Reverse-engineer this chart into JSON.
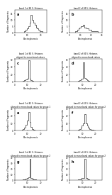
{
  "bg_color": "#ffffff",
  "line_color": "#333333",
  "xlabel": "Electrophoresis",
  "ylabel": "Number of Fragments",
  "panels": [
    {
      "label": "a",
      "title": "band 1 of 84 S. Histones",
      "xlim": [
        0,
        25
      ],
      "ylim": [
        0,
        18
      ],
      "yticks": [
        0,
        5,
        10,
        15
      ],
      "xticks": [
        0,
        10,
        20
      ],
      "data_x": [
        2,
        3,
        4,
        5,
        6,
        7,
        8,
        9,
        10,
        11,
        12,
        13,
        14,
        15,
        16,
        17,
        18,
        19,
        20,
        21,
        22,
        23
      ],
      "data_y": [
        0,
        0,
        0,
        0,
        0,
        0,
        1,
        2,
        3,
        5,
        8,
        14,
        10,
        8,
        6,
        4,
        3,
        2,
        1,
        1,
        0,
        0
      ]
    },
    {
      "label": "b",
      "title": "band 2 of 84 S. Histones",
      "xlim": [
        0,
        30
      ],
      "ylim": [
        0,
        18
      ],
      "yticks": [
        0,
        5,
        10,
        15
      ],
      "xticks": [
        0,
        10,
        20,
        30
      ],
      "data_x": [
        2,
        3,
        4,
        5,
        6,
        7,
        8,
        9,
        10,
        11,
        12,
        13,
        14,
        15,
        16,
        17,
        18,
        19,
        20,
        21,
        22,
        23,
        24,
        25,
        26,
        27,
        28
      ],
      "data_y": [
        0,
        0,
        0,
        0,
        1,
        1,
        2,
        3,
        4,
        5,
        5,
        6,
        4,
        4,
        3,
        3,
        2,
        2,
        2,
        1,
        1,
        1,
        1,
        1,
        1,
        0,
        0
      ]
    },
    {
      "label": "c",
      "title": "band 1 of 84 S. Histones\naligned to mean band values",
      "xlim": [
        0,
        25
      ],
      "ylim": [
        0,
        60
      ],
      "yticks": [
        0,
        20,
        40,
        60
      ],
      "xticks": [
        0,
        10,
        20
      ],
      "data_x": [
        2,
        3,
        4,
        5,
        6,
        7,
        8,
        9,
        10,
        11,
        12,
        13,
        14,
        15,
        16,
        17,
        18,
        19,
        20,
        21,
        22,
        23
      ],
      "data_y": [
        0,
        0,
        0,
        0,
        1,
        2,
        3,
        5,
        8,
        58,
        7,
        4,
        2,
        1,
        1,
        0,
        0,
        0,
        0,
        0,
        0,
        0
      ]
    },
    {
      "label": "d",
      "title": "band 2 of 84 S. Histones\naligned to mean band values",
      "xlim": [
        0,
        25
      ],
      "ylim": [
        0,
        60
      ],
      "yticks": [
        0,
        20,
        40,
        60
      ],
      "xticks": [
        0,
        10,
        20
      ],
      "data_x": [
        2,
        3,
        4,
        5,
        6,
        7,
        8,
        9,
        10,
        11,
        12,
        13,
        14,
        15,
        16,
        17,
        18,
        19,
        20,
        21,
        22,
        23
      ],
      "data_y": [
        0,
        0,
        0,
        0,
        1,
        2,
        3,
        5,
        8,
        52,
        10,
        6,
        3,
        2,
        1,
        0,
        0,
        0,
        0,
        0,
        0,
        0
      ]
    },
    {
      "label": "e",
      "title": "band 1 of 42 S. Histones\naligned to mean band values for group 1",
      "xlim": [
        0,
        25
      ],
      "ylim": [
        0,
        30
      ],
      "yticks": [
        0,
        10,
        20,
        30
      ],
      "xticks": [
        0,
        10,
        20
      ],
      "data_x": [
        4,
        5,
        6,
        7,
        8,
        9,
        10,
        11,
        12,
        13,
        14,
        15,
        16,
        17,
        18,
        19,
        20,
        21
      ],
      "data_y": [
        0,
        0,
        1,
        2,
        4,
        8,
        14,
        25,
        12,
        5,
        2,
        1,
        0,
        0,
        0,
        0,
        0,
        0
      ]
    },
    {
      "label": "f",
      "title": "band 2 of 42 S. Histones\naligned to mean band values for group 2",
      "xlim": [
        0,
        25
      ],
      "ylim": [
        0,
        30
      ],
      "yticks": [
        0,
        10,
        20,
        30
      ],
      "xticks": [
        0,
        10,
        20
      ],
      "data_x": [
        4,
        5,
        6,
        7,
        8,
        9,
        10,
        11,
        12,
        13,
        14,
        15,
        16,
        17,
        18,
        19,
        20,
        21,
        22,
        23
      ],
      "data_y": [
        0,
        0,
        0,
        1,
        2,
        4,
        7,
        10,
        22,
        10,
        7,
        4,
        2,
        1,
        1,
        0,
        0,
        0,
        0,
        0
      ]
    },
    {
      "label": "g",
      "title": "band 1 of 42 S. Histones\naligned to mean band values for group 2",
      "xlim": [
        0,
        25
      ],
      "ylim": [
        0,
        40
      ],
      "yticks": [
        0,
        10,
        20,
        30,
        40
      ],
      "xticks": [
        0,
        10,
        20
      ],
      "data_x": [
        4,
        5,
        6,
        7,
        8,
        9,
        10,
        11,
        12,
        13,
        14,
        15,
        16,
        17,
        18,
        19,
        20,
        21
      ],
      "data_y": [
        0,
        0,
        0,
        1,
        1,
        2,
        3,
        5,
        38,
        4,
        2,
        1,
        1,
        0,
        0,
        0,
        0,
        0
      ]
    },
    {
      "label": "h",
      "title": "band 2 of 42 S. Histones\naligned to mean band values for group 2",
      "xlim": [
        0,
        25
      ],
      "ylim": [
        0,
        40
      ],
      "yticks": [
        0,
        10,
        20,
        30,
        40
      ],
      "xticks": [
        0,
        10,
        20
      ],
      "data_x": [
        4,
        5,
        6,
        7,
        8,
        9,
        10,
        11,
        12,
        13,
        14,
        15,
        16,
        17,
        18,
        19,
        20,
        21
      ],
      "data_y": [
        0,
        0,
        0,
        1,
        1,
        2,
        3,
        4,
        38,
        4,
        2,
        1,
        0,
        0,
        0,
        0,
        0,
        0
      ]
    }
  ]
}
